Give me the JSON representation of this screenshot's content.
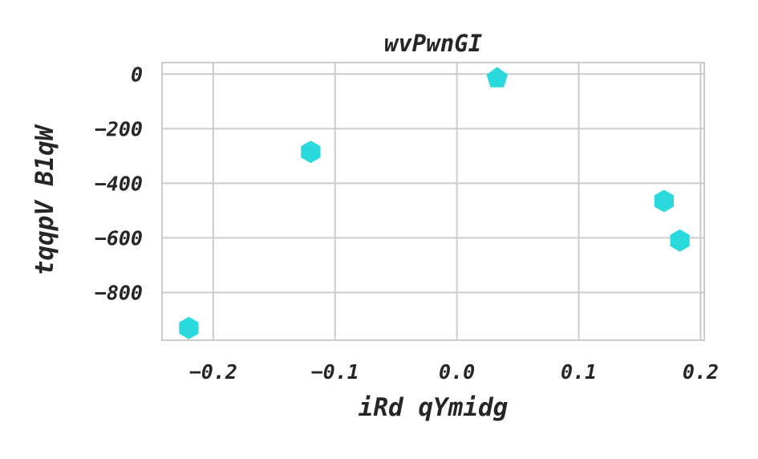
{
  "chart_data": {
    "type": "scatter",
    "title": "wvPwnGI",
    "xlabel": "iRd qYmidg",
    "ylabel": "tqqpV B1qW",
    "xlim": [
      -0.242,
      0.203
    ],
    "ylim": [
      -975,
      42
    ],
    "x_ticks": [
      -0.2,
      -0.1,
      0.0,
      0.1,
      0.2
    ],
    "x_tick_labels": [
      "−0.2",
      "−0.1",
      "0.0",
      "0.1",
      "0.2"
    ],
    "y_ticks": [
      0,
      -200,
      -400,
      -600,
      -800
    ],
    "y_tick_labels": [
      "0",
      "−200",
      "−400",
      "−600",
      "−800"
    ],
    "grid": true,
    "marker_color": "#29d9dc",
    "points": [
      {
        "x": -0.22,
        "y": -930,
        "marker": "hexagon"
      },
      {
        "x": -0.12,
        "y": -285,
        "marker": "hexagon"
      },
      {
        "x": 0.033,
        "y": -15,
        "marker": "pentagon"
      },
      {
        "x": 0.17,
        "y": -465,
        "marker": "hexagon"
      },
      {
        "x": 0.183,
        "y": -610,
        "marker": "hexagon"
      }
    ]
  }
}
